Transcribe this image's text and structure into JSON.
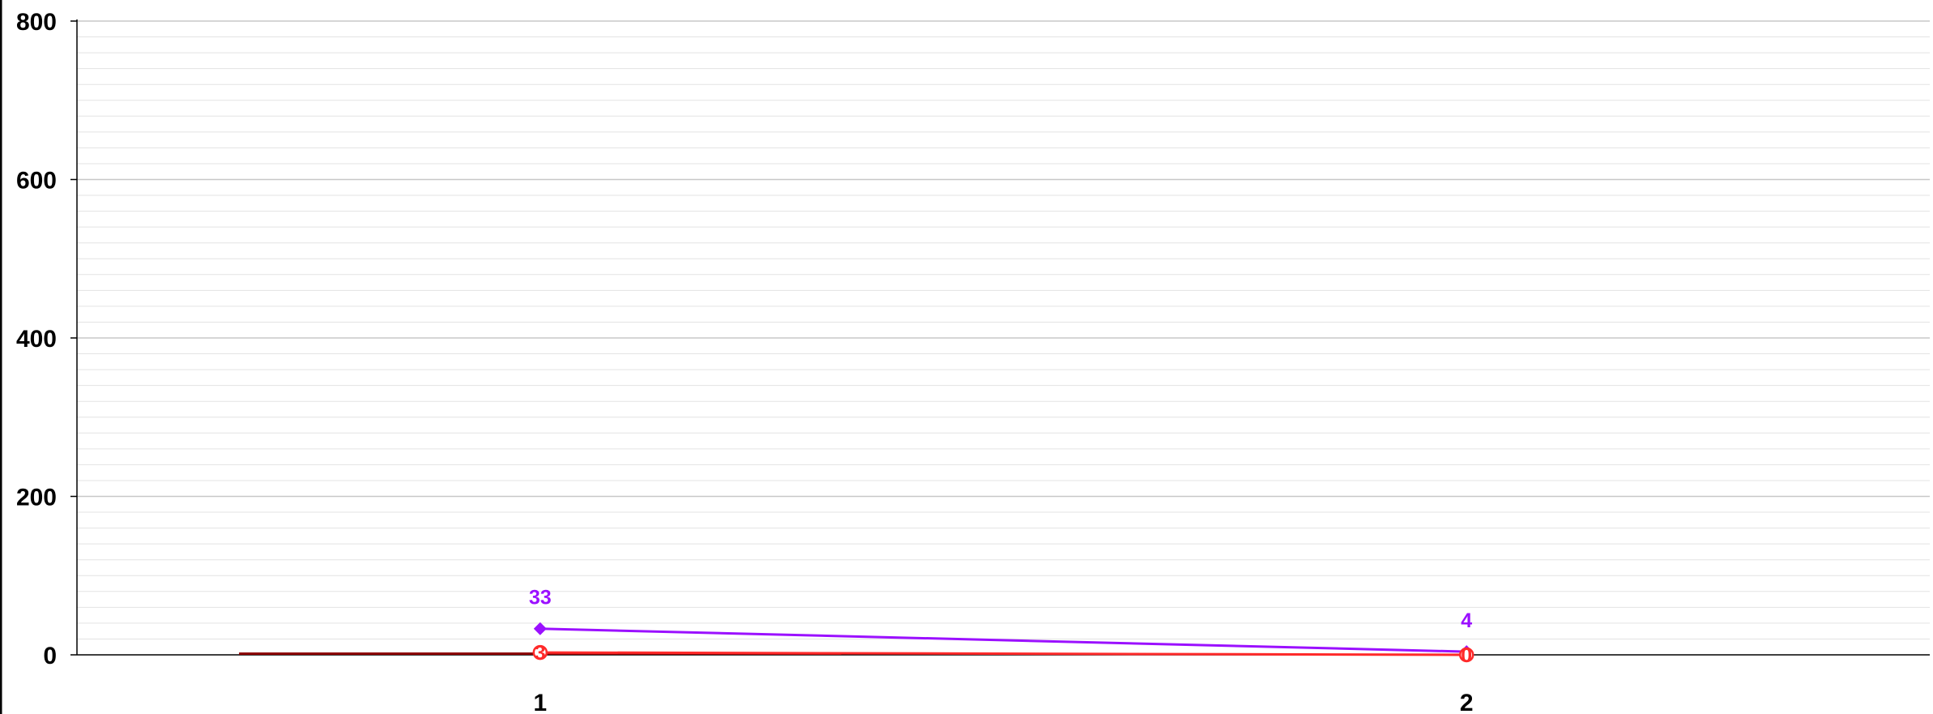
{
  "chart_data": {
    "type": "line",
    "categories": [
      "1",
      "2"
    ],
    "ylim": [
      0,
      800
    ],
    "y_ticks": [
      0,
      200,
      400,
      600,
      800
    ],
    "grid": "horizontal",
    "series": [
      {
        "values": [
          33,
          4
        ],
        "color": "#9b10ff",
        "marker": "diamond",
        "labels": [
          "33",
          "4"
        ]
      },
      {
        "values": [
          3,
          0
        ],
        "color": "#ff2a2a",
        "marker": "circle",
        "labels": [
          "3",
          "0"
        ]
      }
    ],
    "bar_series": {
      "values": [
        3,
        0
      ],
      "color": "#8b0000"
    }
  }
}
